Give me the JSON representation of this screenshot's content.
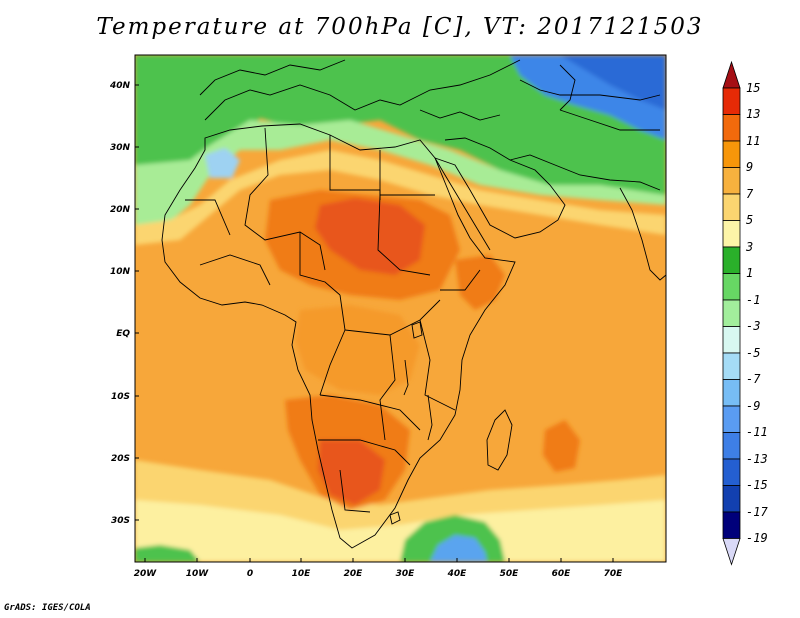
{
  "title": "Temperature at 700hPa [C], VT: 2017121503",
  "credit": "GrADS: IGES/COLA",
  "map": {
    "lat_ticks": [
      "40N",
      "30N",
      "20N",
      "10N",
      "EQ",
      "10S",
      "20S",
      "30S"
    ],
    "lon_ticks": [
      "20W",
      "10W",
      "0",
      "10E",
      "20E",
      "30E",
      "40E",
      "50E",
      "60E",
      "70E"
    ]
  },
  "colorbar": {
    "labels": [
      "15",
      "13",
      "11",
      "9",
      "7",
      "5",
      "3",
      "1",
      "-1",
      "-3",
      "-5",
      "-7",
      "-9",
      "-11",
      "-13",
      "-15",
      "-17",
      "-19"
    ],
    "colors": [
      "#a50f15",
      "#e62a06",
      "#f26a0c",
      "#f7960a",
      "#f7b13e",
      "#fbd570",
      "#fdf5a8",
      "#2ab02a",
      "#67d764",
      "#a2ee9c",
      "#d8f8f1",
      "#a5dcf6",
      "#77bdf5",
      "#5a9cf2",
      "#3e7fe6",
      "#245fd1",
      "#1240b0",
      "#00007a",
      "#d9d9f7"
    ],
    "colors_note": "top arrow, 17 boxes top->bottom, bottom arrow"
  },
  "colors": {
    "ocean_warm": "#f7a73a",
    "ocean_mild": "#fbd570",
    "sahara_hot": "#f07c18",
    "hot_core": "#e8561a",
    "cool_green": "#4ec24e",
    "cold_blue": "#3e86e8",
    "coast": "#000000"
  }
}
